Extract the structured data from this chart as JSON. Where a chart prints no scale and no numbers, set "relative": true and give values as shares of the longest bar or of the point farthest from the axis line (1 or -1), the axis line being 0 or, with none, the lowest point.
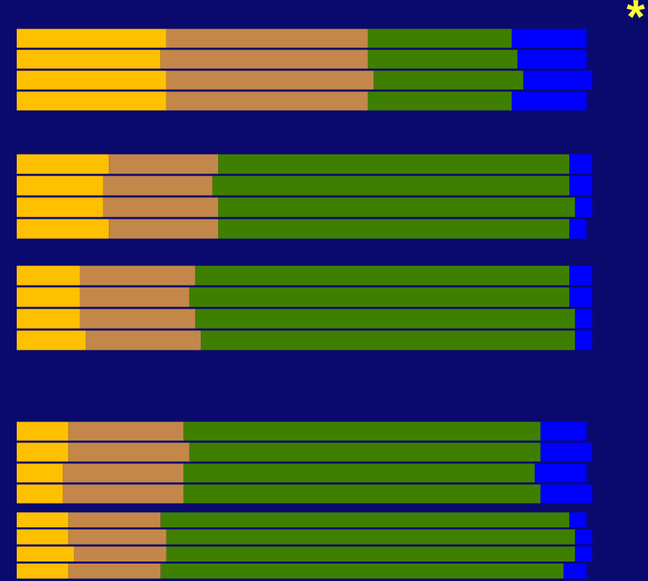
{
  "chart_data": [
    {
      "type": "bar",
      "orientation": "horizontal",
      "stacked": true,
      "relative": true,
      "categories": [
        null,
        null,
        null,
        null
      ],
      "annotations": [
        "*"
      ],
      "series": [
        {
          "color": "#ffc000",
          "values": [
            0.26,
            0.25,
            0.26,
            0.26
          ]
        },
        {
          "color": "#c4874a",
          "values": [
            0.35,
            0.36,
            0.36,
            0.35
          ]
        },
        {
          "color": "#3f7f00",
          "values": [
            0.25,
            0.26,
            0.26,
            0.25
          ]
        },
        {
          "color": "#0000ff",
          "values": [
            0.13,
            0.12,
            0.12,
            0.13
          ]
        }
      ]
    },
    {
      "type": "bar",
      "orientation": "horizontal",
      "stacked": true,
      "relative": true,
      "categories": [
        null,
        null,
        null,
        null
      ],
      "series": [
        {
          "color": "#ffc000",
          "values": [
            0.16,
            0.15,
            0.15,
            0.16
          ]
        },
        {
          "color": "#c4874a",
          "values": [
            0.19,
            0.19,
            0.2,
            0.19
          ]
        },
        {
          "color": "#3f7f00",
          "values": [
            0.61,
            0.62,
            0.62,
            0.61
          ]
        },
        {
          "color": "#0000ff",
          "values": [
            0.04,
            0.04,
            0.03,
            0.03
          ]
        }
      ]
    },
    {
      "type": "bar",
      "orientation": "horizontal",
      "stacked": true,
      "relative": true,
      "categories": [
        null,
        null,
        null,
        null
      ],
      "series": [
        {
          "color": "#ffc000",
          "values": [
            0.11,
            0.11,
            0.11,
            0.12
          ]
        },
        {
          "color": "#c4874a",
          "values": [
            0.2,
            0.19,
            0.2,
            0.2
          ]
        },
        {
          "color": "#3f7f00",
          "values": [
            0.65,
            0.66,
            0.66,
            0.65
          ]
        },
        {
          "color": "#0000ff",
          "values": [
            0.04,
            0.04,
            0.03,
            0.03
          ]
        }
      ]
    },
    {
      "type": "bar",
      "orientation": "horizontal",
      "stacked": true,
      "relative": true,
      "categories": [
        null,
        null,
        null,
        null
      ],
      "series": [
        {
          "color": "#ffc000",
          "values": [
            0.09,
            0.09,
            0.08,
            0.08
          ]
        },
        {
          "color": "#c4874a",
          "values": [
            0.2,
            0.21,
            0.21,
            0.21
          ]
        },
        {
          "color": "#3f7f00",
          "values": [
            0.62,
            0.61,
            0.61,
            0.62
          ]
        },
        {
          "color": "#0000ff",
          "values": [
            0.08,
            0.09,
            0.09,
            0.09
          ]
        }
      ]
    },
    {
      "type": "bar",
      "orientation": "horizontal",
      "stacked": true,
      "relative": true,
      "categories": [
        null,
        null,
        null,
        null
      ],
      "series": [
        {
          "color": "#ffc000",
          "values": [
            0.09,
            0.09,
            0.1,
            0.09
          ]
        },
        {
          "color": "#c4874a",
          "values": [
            0.16,
            0.17,
            0.16,
            0.16
          ]
        },
        {
          "color": "#3f7f00",
          "values": [
            0.71,
            0.71,
            0.71,
            0.7
          ]
        },
        {
          "color": "#0000ff",
          "values": [
            0.03,
            0.03,
            0.03,
            0.04
          ]
        }
      ]
    }
  ]
}
